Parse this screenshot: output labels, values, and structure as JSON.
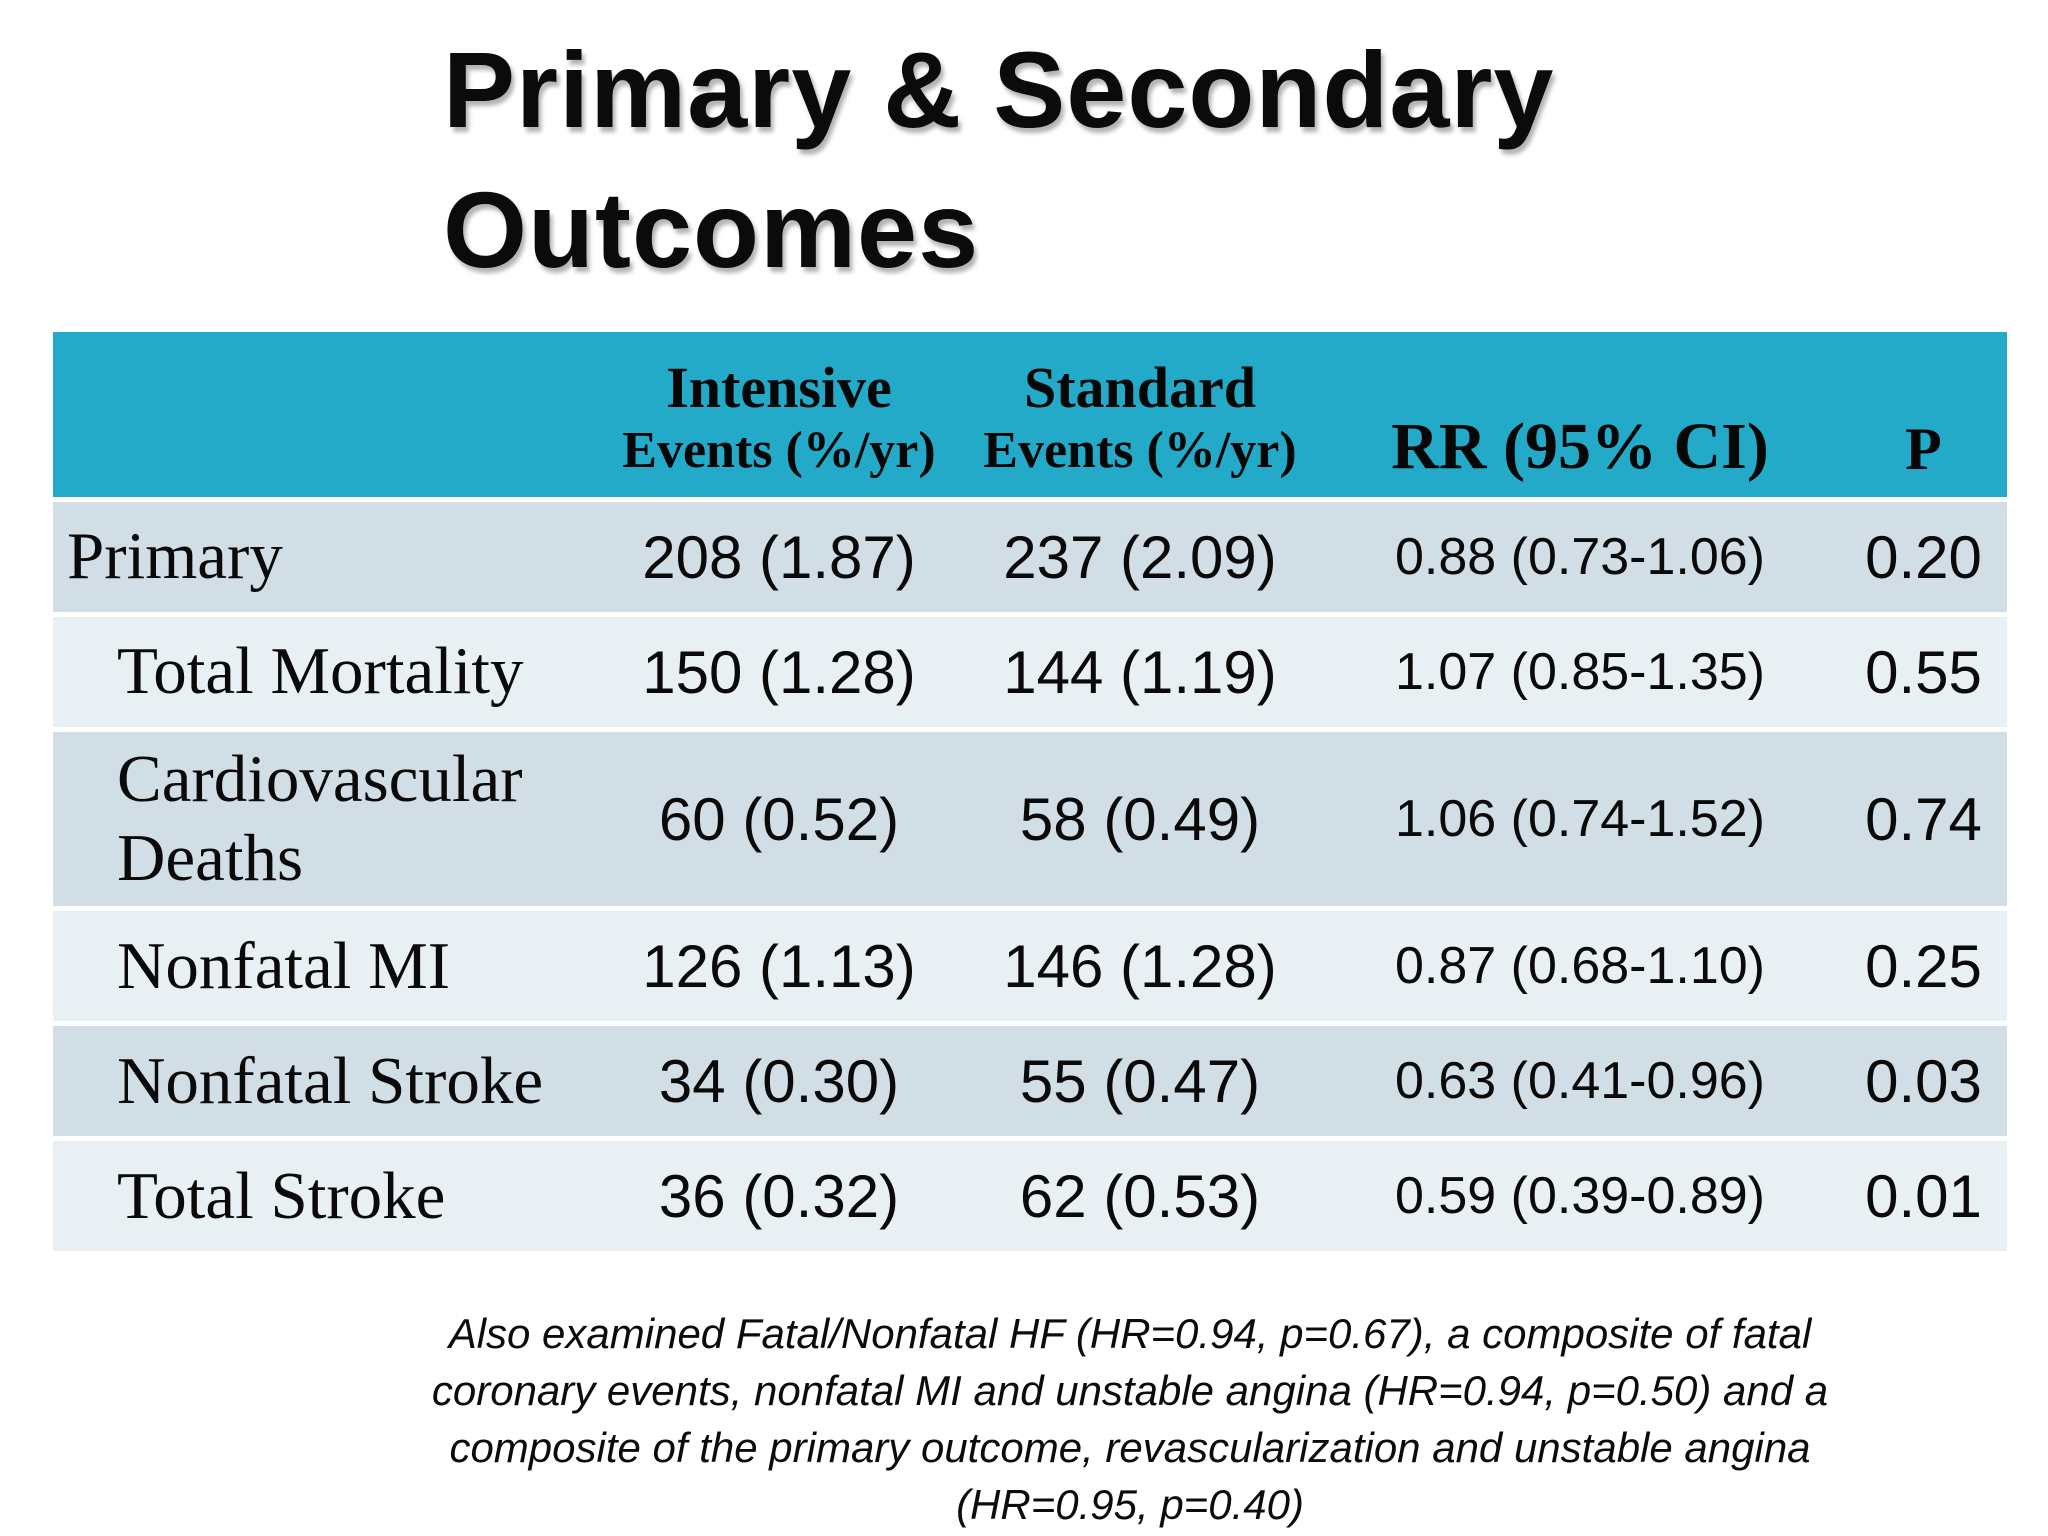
{
  "slide": {
    "title_line1": "Primary & Secondary",
    "title_line2": "Outcomes"
  },
  "table": {
    "header": {
      "outcome": "",
      "intensive": {
        "title": "Intensive",
        "subtitle": "Events (%/yr)"
      },
      "standard": {
        "title": "Standard",
        "subtitle": "Events (%/yr)"
      },
      "rr": "RR (95% CI)",
      "p": "P"
    },
    "rows": [
      {
        "outcome": "Primary",
        "intensive": "208 (1.87)",
        "standard": "237 (2.09)",
        "rr": "0.88 (0.73-1.06)",
        "p": "0.20"
      },
      {
        "outcome": "Total Mortality",
        "intensive": "150 (1.28)",
        "standard": "144 (1.19)",
        "rr": "1.07 (0.85-1.35)",
        "p": "0.55"
      },
      {
        "outcome": "Cardiovascular Deaths",
        "intensive": "60 (0.52)",
        "standard": "58 (0.49)",
        "rr": "1.06 (0.74-1.52)",
        "p": "0.74"
      },
      {
        "outcome": "Nonfatal MI",
        "intensive": "126 (1.13)",
        "standard": "146 (1.28)",
        "rr": "0.87 (0.68-1.10)",
        "p": "0.25"
      },
      {
        "outcome": "Nonfatal Stroke",
        "intensive": "34 (0.30)",
        "standard": "55 (0.47)",
        "rr": "0.63 (0.41-0.96)",
        "p": "0.03"
      },
      {
        "outcome": "Total Stroke",
        "intensive": "36 (0.32)",
        "standard": "62 (0.53)",
        "rr": "0.59 (0.39-0.89)",
        "p": "0.01"
      }
    ]
  },
  "footnote": {
    "lines": [
      "Also examined Fatal/Nonfatal HF (HR=0.94, p=0.67), a composite of fatal",
      "coronary events, nonfatal MI and unstable angina (HR=0.94, p=0.50) and a",
      "composite of the primary outcome, revascularization and unstable angina",
      "(HR=0.95, p=0.40)"
    ]
  },
  "colors": {
    "header_bg": "#22aac8",
    "row_dark": "#d2dee5",
    "row_light": "#e9f0f4",
    "row_separator": "#ffffff",
    "text": "#0a0a0a"
  }
}
